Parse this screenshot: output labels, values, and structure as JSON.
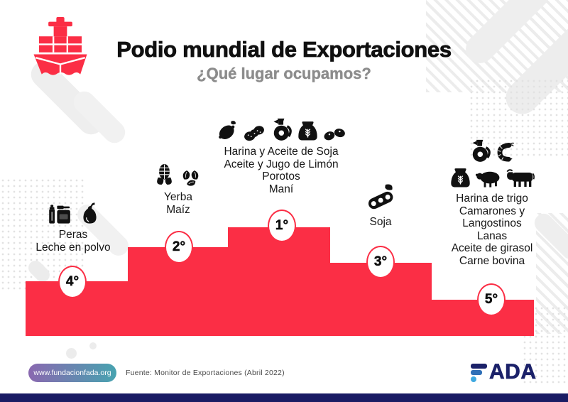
{
  "header": {
    "title": "Podio mundial de Exportaciones",
    "subtitle": "¿Qué lugar ocupamos?",
    "brand_icon": "cargo-ship-icon"
  },
  "podium": {
    "positions": [
      {
        "rank": "4°",
        "products": [
          "Peras",
          "Leche en polvo"
        ],
        "icon_rows": [
          [
            "milk-powder-icon",
            "pear-icon"
          ]
        ]
      },
      {
        "rank": "2°",
        "products": [
          "Yerba",
          "Maíz"
        ],
        "icon_rows": [
          [
            "corn-icon",
            "yerba-icon"
          ]
        ]
      },
      {
        "rank": "1°",
        "products": [
          "Harina y Aceite de Soja",
          "Aceite y Jugo de Limón",
          "Porotos",
          "Maní"
        ],
        "icon_rows": [
          [
            "lemon-icon",
            "peanut-icon",
            "oil-jug-icon",
            "flour-sack-icon",
            "beans-icon"
          ]
        ]
      },
      {
        "rank": "3°",
        "products": [
          "Soja"
        ],
        "icon_rows": [
          [
            "soybean-icon"
          ]
        ]
      },
      {
        "rank": "5°",
        "products": [
          "Harina de trigo",
          "Camarones y",
          "Langostinos",
          "Lanas",
          "Aceite de girasol",
          "Carne bovina"
        ],
        "icon_rows": [
          [
            "oil-jug-icon",
            "shrimp-icon"
          ],
          [
            "flour-sack-icon",
            "sheep-icon",
            "cow-icon"
          ]
        ]
      }
    ]
  },
  "chart_data": {
    "type": "bar",
    "title": "Podio mundial de Exportaciones",
    "subtitle": "¿Qué lugar ocupamos?",
    "categories": [
      "4°",
      "2°",
      "1°",
      "3°",
      "5°"
    ],
    "values": [
      77,
      125,
      153,
      103,
      51
    ],
    "value_note": "relative podium step heights (px), left to right",
    "series_labels": [
      [
        "Peras",
        "Leche en polvo"
      ],
      [
        "Yerba",
        "Maíz"
      ],
      [
        "Harina y Aceite de Soja",
        "Aceite y Jugo de Limón",
        "Porotos",
        "Maní"
      ],
      [
        "Soja"
      ],
      [
        "Harina de trigo",
        "Camarones y Langostinos",
        "Lanas",
        "Aceite de girasol",
        "Carne bovina"
      ]
    ],
    "legend": "none",
    "grid": false
  },
  "footer": {
    "website": "www.fundacionfada.org",
    "source": "Fuente: Monitor de Exportaciones (Abril 2022)",
    "brand": "FADA",
    "brand_letters": "ADA"
  },
  "colors": {
    "accent_red": "#fb2e45",
    "title_black": "#101010",
    "subtitle_gray": "#8c8c8c",
    "label_text": "#161616",
    "navy_bar": "#1a1c64",
    "logo_navy": "#1b2169",
    "logo_blue": "#2e6fb7",
    "logo_light_blue": "#3fa9e0",
    "pill_gradient_start": "#8a68b0",
    "pill_gradient_end": "#47a3b0",
    "bg_decoration": "#eeeeee"
  }
}
